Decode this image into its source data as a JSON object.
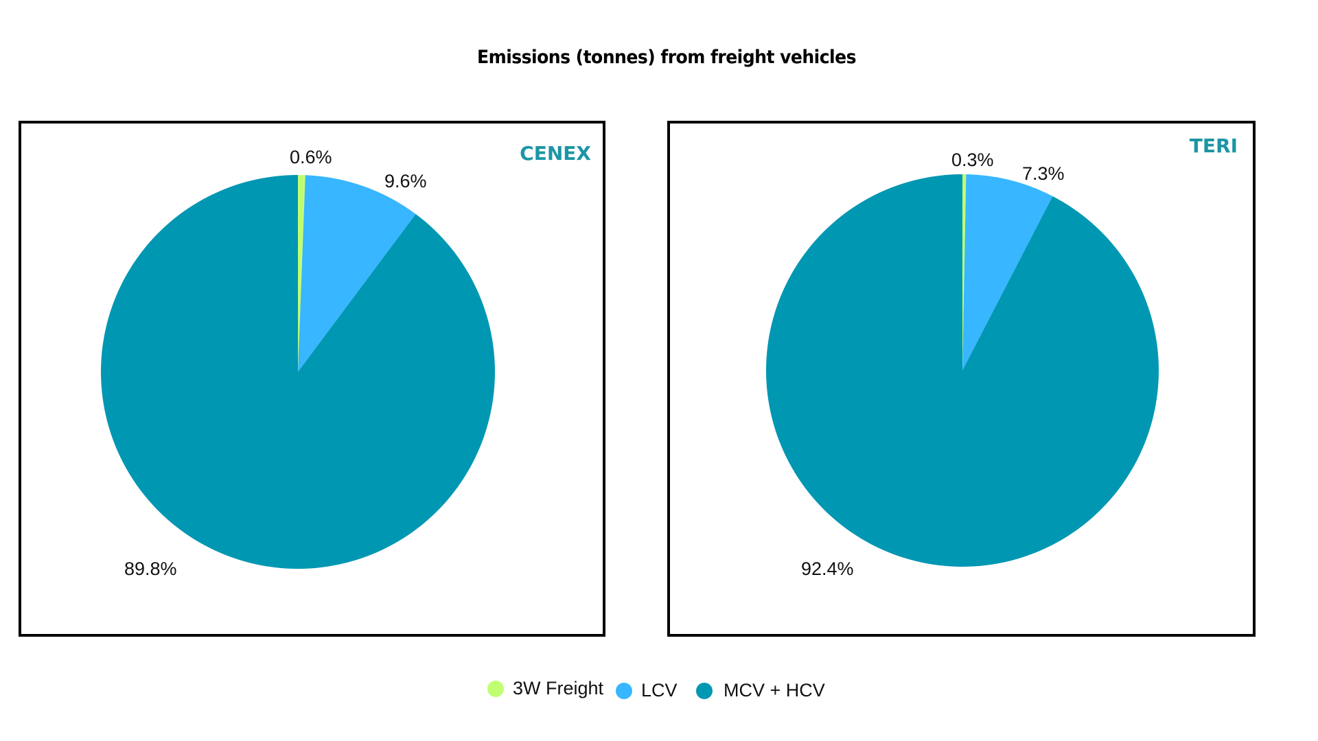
{
  "chart_data": [
    {
      "type": "pie",
      "title": "Emissions (tonnes) from freight vehicles",
      "panel_label": "CENEX",
      "categories": [
        "3W Freight",
        "LCV",
        "MCV + HCV"
      ],
      "values": [
        0.6,
        9.6,
        89.8
      ],
      "labels": [
        "0.6%",
        "9.6%",
        "89.8%"
      ],
      "unit": "%",
      "start_angle": "12 o'clock",
      "direction": "clockwise"
    },
    {
      "type": "pie",
      "title": "Emissions (tonnes) from freight vehicles",
      "panel_label": "TERI",
      "categories": [
        "3W Freight",
        "LCV",
        "MCV + HCV"
      ],
      "values": [
        0.3,
        7.3,
        92.4
      ],
      "labels": [
        "0.3%",
        "7.3%",
        "92.4%"
      ],
      "unit": "%",
      "start_angle": "12 o'clock",
      "direction": "clockwise"
    }
  ],
  "page": {
    "title": "Emissions (tonnes) from freight vehicles"
  },
  "legend": {
    "placement": "bottom-center",
    "items": [
      {
        "label": "3W Freight",
        "color": "#c1ff72"
      },
      {
        "label": "LCV",
        "color": "#38b6ff"
      },
      {
        "label": "MCV + HCV",
        "color": "#0097b2"
      }
    ]
  },
  "colors": {
    "series": [
      "#c1ff72",
      "#38b6ff",
      "#0097b2"
    ],
    "panel_label": "#1b96a5",
    "frame": "#000000"
  }
}
